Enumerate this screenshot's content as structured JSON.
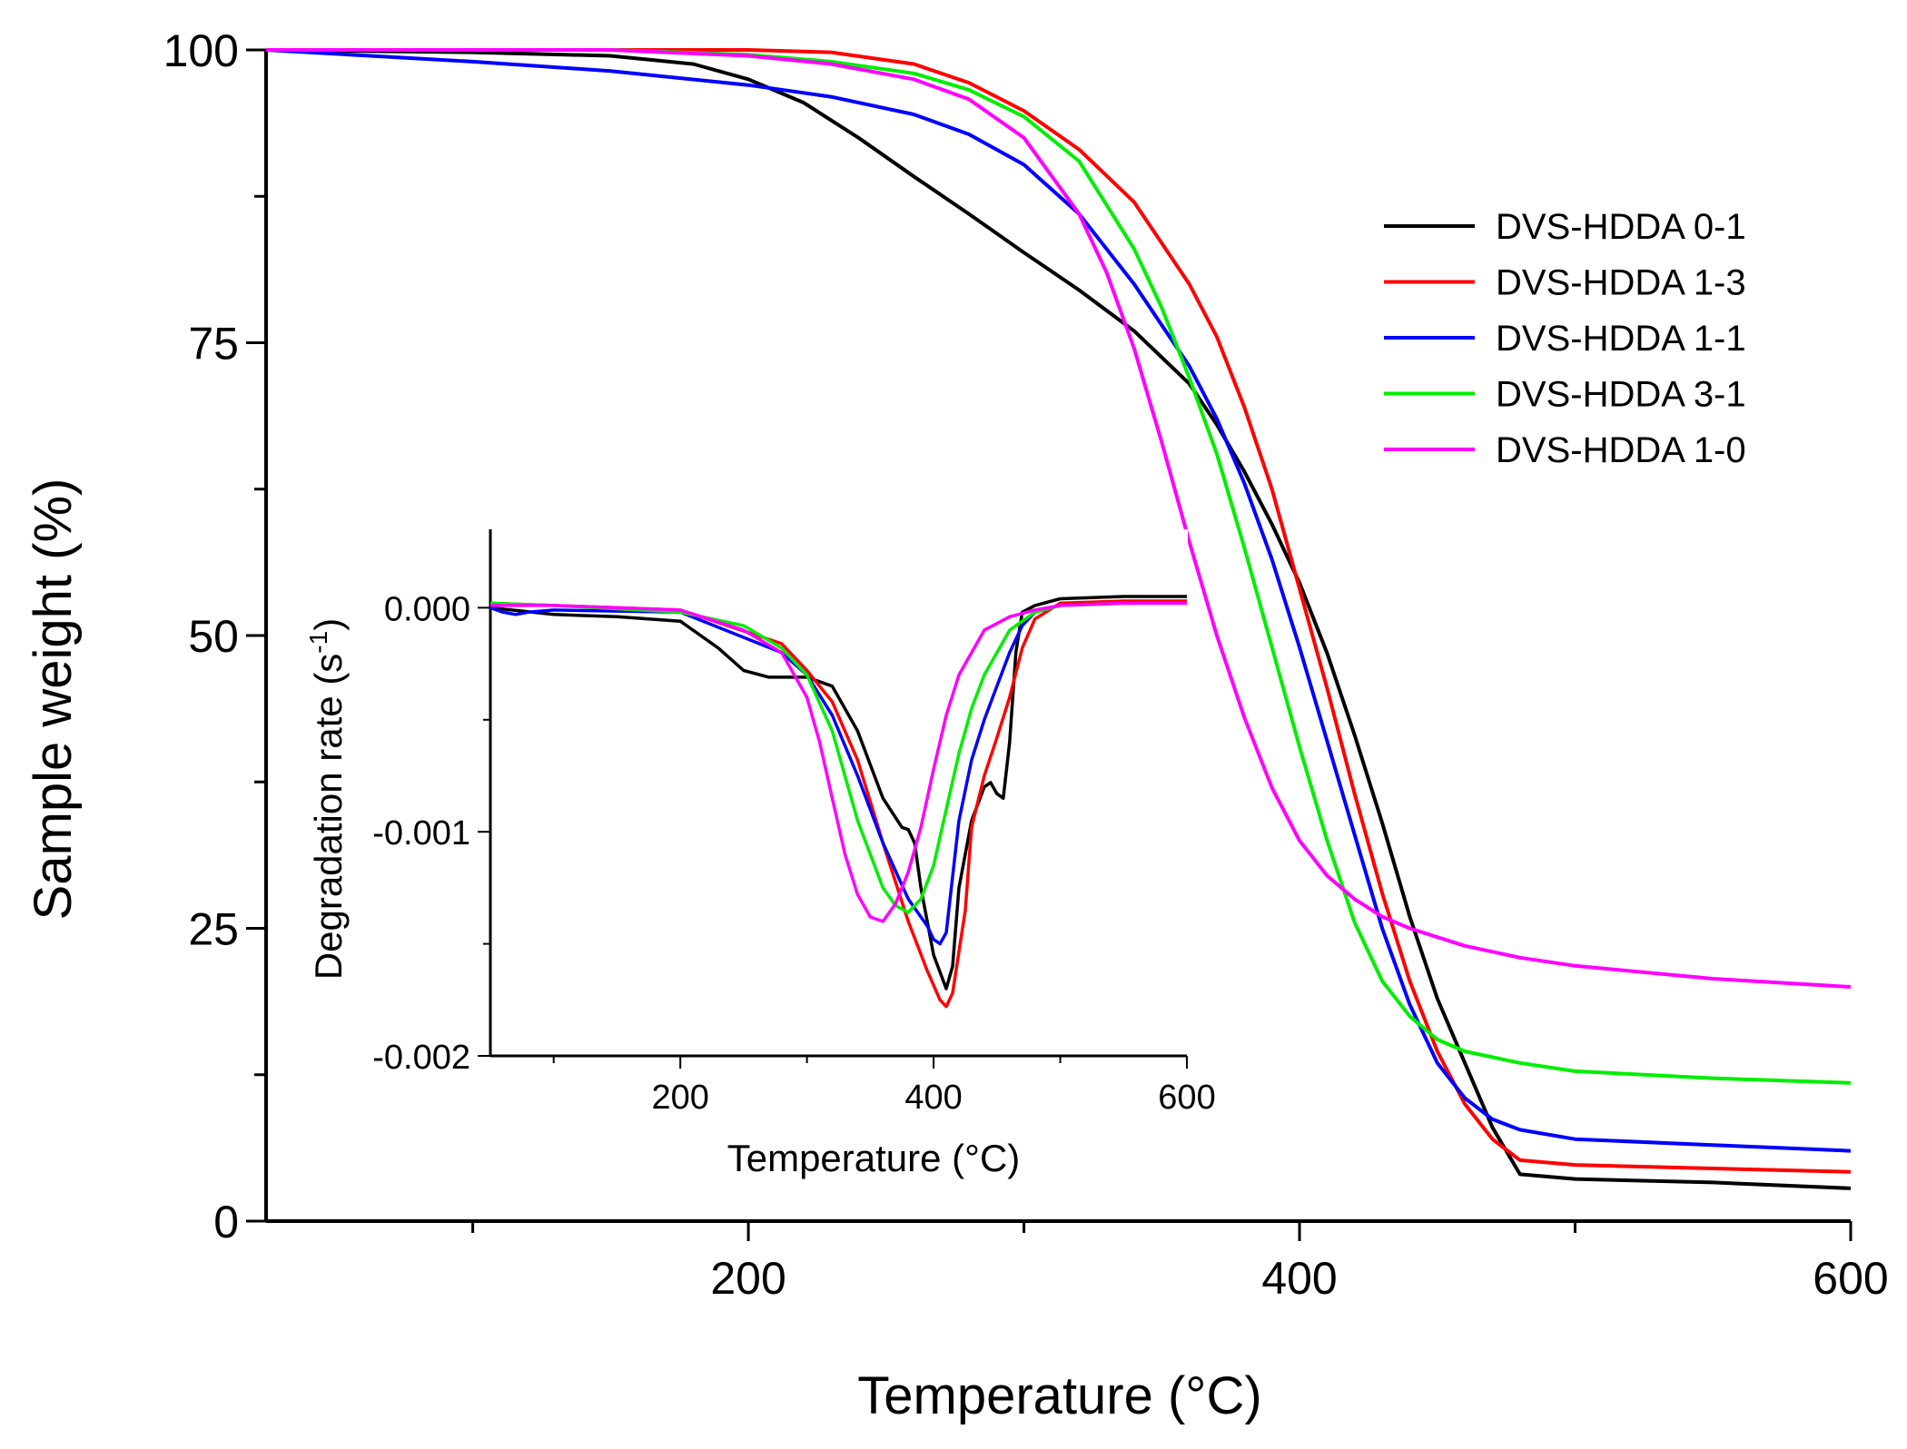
{
  "chart_data": [
    {
      "type": "line",
      "role": "main",
      "xlabel": "Temperature (°C)",
      "ylabel": "Sample weight (%)",
      "xlim": [
        25,
        600
      ],
      "ylim": [
        0,
        100
      ],
      "xticks": [
        200,
        400,
        600
      ],
      "xtick_labels": [
        "200",
        "400",
        "600"
      ],
      "yticks": [
        0,
        25,
        50,
        75,
        100
      ],
      "ytick_labels": [
        "0",
        "25",
        "50",
        "75",
        "100"
      ],
      "legend_position": "top-right",
      "series": [
        {
          "name": "DVS-HDDA 0-1",
          "color": "#000000",
          "x": [
            25,
            100,
            150,
            180,
            200,
            220,
            240,
            260,
            280,
            300,
            320,
            340,
            360,
            370,
            380,
            390,
            400,
            410,
            420,
            430,
            440,
            450,
            460,
            470,
            480,
            500,
            550,
            600
          ],
          "y": [
            100,
            99.8,
            99.5,
            98.8,
            97.5,
            95.5,
            92.5,
            89.2,
            86,
            82.7,
            79.5,
            76,
            71.5,
            68,
            64,
            59.5,
            54.5,
            48.5,
            41.5,
            34,
            26,
            19,
            13.5,
            8,
            4,
            3.6,
            3.3,
            2.8
          ]
        },
        {
          "name": "DVS-HDDA 1-3",
          "color": "#ff0000",
          "x": [
            25,
            100,
            150,
            200,
            230,
            260,
            280,
            300,
            320,
            340,
            360,
            370,
            380,
            390,
            400,
            410,
            420,
            430,
            440,
            450,
            460,
            470,
            480,
            500,
            550,
            600
          ],
          "y": [
            100,
            100,
            100,
            100,
            99.8,
            98.8,
            97.2,
            94.8,
            91.5,
            87,
            80,
            75.5,
            69.5,
            62.5,
            54,
            45.5,
            36.5,
            28,
            20.5,
            14.5,
            10,
            7,
            5.2,
            4.8,
            4.5,
            4.2
          ]
        },
        {
          "name": "DVS-HDDA 1-1",
          "color": "#0000ff",
          "x": [
            25,
            100,
            150,
            200,
            230,
            260,
            280,
            300,
            320,
            340,
            360,
            370,
            380,
            390,
            400,
            410,
            420,
            430,
            440,
            450,
            460,
            470,
            480,
            500,
            550,
            600
          ],
          "y": [
            100,
            99,
            98.2,
            97,
            96,
            94.5,
            92.8,
            90.2,
            86,
            80,
            73,
            68.5,
            63,
            56.5,
            49,
            41,
            33,
            25,
            18.5,
            13.5,
            10.5,
            8.7,
            7.8,
            7,
            6.5,
            6
          ]
        },
        {
          "name": "DVS-HDDA 3-1",
          "color": "#00ee00",
          "x": [
            25,
            100,
            150,
            200,
            230,
            260,
            280,
            300,
            320,
            340,
            350,
            360,
            370,
            380,
            390,
            400,
            410,
            420,
            430,
            440,
            450,
            460,
            480,
            500,
            550,
            600
          ],
          "y": [
            100,
            100,
            100,
            99.6,
            99,
            98,
            96.6,
            94.3,
            90.5,
            83,
            78,
            72,
            65.5,
            57.5,
            49,
            40.5,
            32.5,
            25.5,
            20.5,
            17.5,
            15.5,
            14.5,
            13.5,
            12.8,
            12.2,
            11.8
          ]
        },
        {
          "name": "DVS-HDDA 1-0",
          "color": "#ff00ff",
          "x": [
            25,
            100,
            150,
            200,
            230,
            260,
            280,
            300,
            320,
            330,
            340,
            350,
            360,
            370,
            380,
            390,
            400,
            410,
            420,
            430,
            440,
            460,
            480,
            500,
            550,
            600
          ],
          "y": [
            100,
            100,
            100,
            99.5,
            98.8,
            97.5,
            95.8,
            92.5,
            86,
            81,
            74.5,
            66.5,
            58,
            50,
            43,
            37,
            32.5,
            29.5,
            27.5,
            26,
            25,
            23.5,
            22.5,
            21.8,
            20.7,
            20
          ]
        }
      ]
    },
    {
      "type": "line",
      "role": "inset",
      "xlabel": "Temperature (°C)",
      "ylabel": "Degradation rate (s",
      "ylabel_superscript": "-1",
      "ylabel_close": ")",
      "xlim": [
        50,
        600
      ],
      "ylim": [
        -0.002,
        0.00035
      ],
      "xticks": [
        200,
        400,
        600
      ],
      "xtick_labels": [
        "200",
        "400",
        "600"
      ],
      "yticks": [
        0,
        -0.001,
        -0.002
      ],
      "ytick_labels": [
        "0.000",
        "-0.001",
        "-0.002"
      ],
      "series": [
        {
          "name": "DVS-HDDA 0-1",
          "color": "#000000",
          "x": [
            50,
            100,
            150,
            200,
            230,
            250,
            270,
            300,
            320,
            340,
            360,
            375,
            380,
            385,
            390,
            400,
            410,
            415,
            420,
            430,
            440,
            445,
            450,
            455,
            460,
            465,
            470,
            480,
            500,
            550,
            600
          ],
          "y": [
            0.0,
            -3e-05,
            -4e-05,
            -6e-05,
            -0.00018,
            -0.00028,
            -0.00031,
            -0.00031,
            -0.00035,
            -0.00055,
            -0.00085,
            -0.00098,
            -0.00099,
            -0.00105,
            -0.00125,
            -0.00155,
            -0.0017,
            -0.0016,
            -0.00125,
            -0.00095,
            -0.0008,
            -0.00078,
            -0.00083,
            -0.00085,
            -0.0006,
            -0.0002,
            -2e-05,
            1e-05,
            4e-05,
            5e-05,
            5e-05
          ]
        },
        {
          "name": "DVS-HDDA 1-3",
          "color": "#ff0000",
          "x": [
            50,
            100,
            200,
            280,
            300,
            320,
            340,
            360,
            380,
            395,
            405,
            410,
            415,
            425,
            430,
            440,
            450,
            460,
            470,
            480,
            500,
            550,
            600
          ],
          "y": [
            2e-05,
            1e-05,
            -1e-05,
            -0.00016,
            -0.00028,
            -0.00042,
            -0.00068,
            -0.00105,
            -0.0014,
            -0.00162,
            -0.00175,
            -0.00178,
            -0.00172,
            -0.00135,
            -0.00098,
            -0.00075,
            -0.00058,
            -0.0004,
            -0.00018,
            -5e-05,
            2e-05,
            3e-05,
            3e-05
          ]
        },
        {
          "name": "DVS-HDDA 1-1",
          "color": "#0000ff",
          "x": [
            50,
            60,
            70,
            80,
            100,
            200,
            280,
            300,
            320,
            340,
            360,
            380,
            395,
            400,
            405,
            410,
            415,
            420,
            430,
            440,
            450,
            460,
            470,
            480,
            500,
            550,
            600
          ],
          "y": [
            0.0,
            -2e-05,
            -3e-05,
            -2e-05,
            -1e-05,
            -2e-05,
            -0.0002,
            -0.0003,
            -0.00048,
            -0.00075,
            -0.00105,
            -0.0013,
            -0.00142,
            -0.00148,
            -0.0015,
            -0.00145,
            -0.0012,
            -0.00095,
            -0.00068,
            -0.0005,
            -0.00035,
            -0.0002,
            -8e-05,
            -2e-05,
            1e-05,
            2e-05,
            2e-05
          ]
        },
        {
          "name": "DVS-HDDA 3-1",
          "color": "#00ee00",
          "x": [
            50,
            100,
            200,
            250,
            280,
            300,
            320,
            340,
            360,
            370,
            380,
            390,
            400,
            410,
            420,
            430,
            440,
            460,
            480,
            500,
            550,
            600
          ],
          "y": [
            2e-05,
            1e-05,
            -2e-05,
            -8e-05,
            -0.00018,
            -0.0003,
            -0.00055,
            -0.00095,
            -0.00125,
            -0.00133,
            -0.00136,
            -0.0013,
            -0.00115,
            -0.0009,
            -0.00065,
            -0.00045,
            -0.0003,
            -0.0001,
            -2e-05,
            1e-05,
            2e-05,
            2e-05
          ]
        },
        {
          "name": "DVS-HDDA 1-0",
          "color": "#ff00ff",
          "x": [
            50,
            100,
            200,
            250,
            280,
            300,
            310,
            320,
            330,
            340,
            350,
            360,
            370,
            380,
            390,
            400,
            410,
            420,
            440,
            460,
            480,
            500,
            550,
            600
          ],
          "y": [
            1e-05,
            1e-05,
            -1e-05,
            -0.0001,
            -0.0002,
            -0.0004,
            -0.0006,
            -0.00085,
            -0.0011,
            -0.00128,
            -0.00138,
            -0.0014,
            -0.00132,
            -0.00118,
            -0.00098,
            -0.00072,
            -0.00048,
            -0.0003,
            -0.0001,
            -4e-05,
            -1e-05,
            1e-05,
            2e-05,
            2e-05
          ]
        }
      ]
    }
  ]
}
